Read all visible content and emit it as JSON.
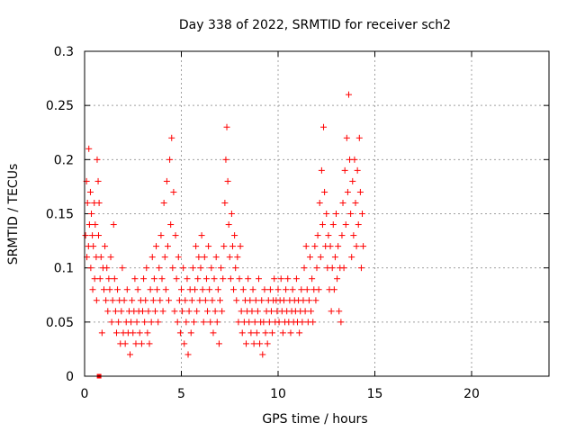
{
  "chart_data": {
    "type": "scatter",
    "title": "Day 338 of 2022, SRMTID for receiver sch2",
    "xlabel": "GPS time / hours",
    "ylabel": "SRMTID / TECUs",
    "xlim": [
      0,
      24
    ],
    "ylim": [
      0,
      0.3
    ],
    "x_ticks": [
      0,
      5,
      10,
      15,
      20
    ],
    "x_tick_labels": [
      "0",
      "5",
      "10",
      "15",
      "20"
    ],
    "y_ticks": [
      0,
      0.05,
      0.1,
      0.15,
      0.2,
      0.25,
      0.3
    ],
    "y_tick_labels": [
      "0",
      "0.05",
      "0.1",
      "0.15",
      "0.2",
      "0.25",
      "0.3"
    ],
    "grid": true,
    "marker": "plus",
    "series": [
      {
        "name": "SRMTID",
        "color": "#ff0000",
        "points": [
          [
            0.05,
            0.13
          ],
          [
            0.1,
            0.18
          ],
          [
            0.12,
            0.11
          ],
          [
            0.15,
            0.16
          ],
          [
            0.2,
            0.12
          ],
          [
            0.22,
            0.21
          ],
          [
            0.25,
            0.14
          ],
          [
            0.3,
            0.17
          ],
          [
            0.32,
            0.1
          ],
          [
            0.35,
            0.15
          ],
          [
            0.4,
            0.13
          ],
          [
            0.42,
            0.08
          ],
          [
            0.45,
            0.12
          ],
          [
            0.5,
            0.16
          ],
          [
            0.52,
            0.09
          ],
          [
            0.55,
            0.14
          ],
          [
            0.6,
            0.11
          ],
          [
            0.62,
            0.07
          ],
          [
            0.65,
            0.2
          ],
          [
            0.7,
            0.18
          ],
          [
            0.72,
            0.13
          ],
          [
            0.75,
            0.16
          ],
          [
            0.8,
            0.09
          ],
          [
            0.85,
            0.11
          ],
          [
            0.9,
            0.04
          ],
          [
            0.95,
            0.1
          ],
          [
            1.0,
            0.08
          ],
          [
            1.05,
            0.12
          ],
          [
            1.1,
            0.07
          ],
          [
            1.15,
            0.1
          ],
          [
            1.2,
            0.06
          ],
          [
            1.25,
            0.09
          ],
          [
            1.3,
            0.08
          ],
          [
            1.35,
            0.11
          ],
          [
            1.4,
            0.05
          ],
          [
            1.45,
            0.07
          ],
          [
            1.5,
            0.14
          ],
          [
            1.55,
            0.09
          ],
          [
            1.6,
            0.06
          ],
          [
            1.65,
            0.04
          ],
          [
            1.7,
            0.08
          ],
          [
            1.75,
            0.05
          ],
          [
            1.8,
            0.07
          ],
          [
            1.85,
            0.03
          ],
          [
            1.9,
            0.06
          ],
          [
            1.95,
            0.1
          ],
          [
            2.0,
            0.04
          ],
          [
            2.05,
            0.07
          ],
          [
            2.1,
            0.03
          ],
          [
            2.15,
            0.05
          ],
          [
            2.2,
            0.08
          ],
          [
            2.25,
            0.04
          ],
          [
            2.3,
            0.06
          ],
          [
            2.35,
            0.02
          ],
          [
            2.4,
            0.05
          ],
          [
            2.45,
            0.07
          ],
          [
            2.5,
            0.04
          ],
          [
            2.55,
            0.06
          ],
          [
            2.6,
            0.09
          ],
          [
            2.65,
            0.03
          ],
          [
            2.7,
            0.05
          ],
          [
            2.75,
            0.08
          ],
          [
            2.8,
            0.06
          ],
          [
            2.85,
            0.04
          ],
          [
            2.9,
            0.07
          ],
          [
            2.95,
            0.03
          ],
          [
            3.0,
            0.06
          ],
          [
            3.05,
            0.09
          ],
          [
            3.1,
            0.05
          ],
          [
            3.15,
            0.07
          ],
          [
            3.2,
            0.1
          ],
          [
            3.25,
            0.04
          ],
          [
            3.3,
            0.06
          ],
          [
            3.35,
            0.03
          ],
          [
            3.4,
            0.08
          ],
          [
            3.45,
            0.05
          ],
          [
            3.5,
            0.11
          ],
          [
            3.55,
            0.07
          ],
          [
            3.6,
            0.09
          ],
          [
            3.65,
            0.06
          ],
          [
            3.7,
            0.12
          ],
          [
            3.75,
            0.08
          ],
          [
            3.8,
            0.05
          ],
          [
            3.85,
            0.1
          ],
          [
            3.9,
            0.07
          ],
          [
            3.95,
            0.13
          ],
          [
            4.0,
            0.09
          ],
          [
            4.05,
            0.06
          ],
          [
            4.1,
            0.16
          ],
          [
            4.15,
            0.11
          ],
          [
            4.2,
            0.08
          ],
          [
            4.25,
            0.18
          ],
          [
            4.3,
            0.12
          ],
          [
            4.35,
            0.07
          ],
          [
            4.4,
            0.2
          ],
          [
            4.45,
            0.14
          ],
          [
            4.5,
            0.22
          ],
          [
            4.55,
            0.1
          ],
          [
            4.6,
            0.17
          ],
          [
            4.65,
            0.06
          ],
          [
            4.7,
            0.13
          ],
          [
            4.75,
            0.09
          ],
          [
            4.8,
            0.05
          ],
          [
            4.85,
            0.11
          ],
          [
            4.9,
            0.07
          ],
          [
            4.95,
            0.04
          ],
          [
            5.0,
            0.08
          ],
          [
            5.05,
            0.06
          ],
          [
            5.1,
            0.1
          ],
          [
            5.15,
            0.03
          ],
          [
            5.2,
            0.07
          ],
          [
            5.25,
            0.05
          ],
          [
            5.3,
            0.09
          ],
          [
            5.35,
            0.02
          ],
          [
            5.4,
            0.06
          ],
          [
            5.45,
            0.08
          ],
          [
            5.5,
            0.04
          ],
          [
            5.55,
            0.07
          ],
          [
            5.6,
            0.1
          ],
          [
            5.65,
            0.05
          ],
          [
            5.7,
            0.08
          ],
          [
            5.75,
            0.12
          ],
          [
            5.8,
            0.06
          ],
          [
            5.85,
            0.09
          ],
          [
            5.9,
            0.11
          ],
          [
            5.95,
            0.07
          ],
          [
            6.0,
            0.1
          ],
          [
            6.05,
            0.13
          ],
          [
            6.1,
            0.08
          ],
          [
            6.15,
            0.05
          ],
          [
            6.2,
            0.11
          ],
          [
            6.25,
            0.07
          ],
          [
            6.3,
            0.09
          ],
          [
            6.35,
            0.06
          ],
          [
            6.4,
            0.12
          ],
          [
            6.45,
            0.08
          ],
          [
            6.5,
            0.05
          ],
          [
            6.55,
            0.1
          ],
          [
            6.6,
            0.07
          ],
          [
            6.65,
            0.04
          ],
          [
            6.7,
            0.09
          ],
          [
            6.75,
            0.06
          ],
          [
            6.8,
            0.11
          ],
          [
            6.85,
            0.05
          ],
          [
            6.9,
            0.08
          ],
          [
            6.95,
            0.03
          ],
          [
            7.0,
            0.07
          ],
          [
            7.05,
            0.1
          ],
          [
            7.1,
            0.06
          ],
          [
            7.15,
            0.09
          ],
          [
            7.2,
            0.12
          ],
          [
            7.25,
            0.16
          ],
          [
            7.3,
            0.2
          ],
          [
            7.35,
            0.23
          ],
          [
            7.4,
            0.18
          ],
          [
            7.45,
            0.14
          ],
          [
            7.5,
            0.11
          ],
          [
            7.55,
            0.09
          ],
          [
            7.6,
            0.15
          ],
          [
            7.65,
            0.12
          ],
          [
            7.7,
            0.08
          ],
          [
            7.75,
            0.13
          ],
          [
            7.8,
            0.1
          ],
          [
            7.85,
            0.07
          ],
          [
            7.9,
            0.11
          ],
          [
            7.95,
            0.05
          ],
          [
            8.0,
            0.09
          ],
          [
            8.05,
            0.12
          ],
          [
            8.1,
            0.06
          ],
          [
            8.15,
            0.04
          ],
          [
            8.2,
            0.08
          ],
          [
            8.25,
            0.05
          ],
          [
            8.3,
            0.07
          ],
          [
            8.35,
            0.03
          ],
          [
            8.4,
            0.06
          ],
          [
            8.45,
            0.09
          ],
          [
            8.5,
            0.05
          ],
          [
            8.55,
            0.07
          ],
          [
            8.6,
            0.04
          ],
          [
            8.65,
            0.06
          ],
          [
            8.7,
            0.08
          ],
          [
            8.75,
            0.03
          ],
          [
            8.8,
            0.05
          ],
          [
            8.85,
            0.07
          ],
          [
            8.9,
            0.04
          ],
          [
            8.95,
            0.06
          ],
          [
            9.0,
            0.09
          ],
          [
            9.05,
            0.03
          ],
          [
            9.1,
            0.05
          ],
          [
            9.15,
            0.07
          ],
          [
            9.2,
            0.02
          ],
          [
            9.25,
            0.05
          ],
          [
            9.3,
            0.08
          ],
          [
            9.35,
            0.04
          ],
          [
            9.4,
            0.06
          ],
          [
            9.45,
            0.03
          ],
          [
            9.5,
            0.07
          ],
          [
            9.55,
            0.05
          ],
          [
            9.6,
            0.08
          ],
          [
            9.65,
            0.06
          ],
          [
            9.7,
            0.04
          ],
          [
            9.75,
            0.07
          ],
          [
            9.8,
            0.09
          ],
          [
            9.85,
            0.05
          ],
          [
            9.9,
            0.07
          ],
          [
            9.95,
            0.06
          ],
          [
            10.0,
            0.08
          ],
          [
            10.05,
            0.05
          ],
          [
            10.1,
            0.07
          ],
          [
            10.15,
            0.09
          ],
          [
            10.2,
            0.06
          ],
          [
            10.25,
            0.04
          ],
          [
            10.3,
            0.07
          ],
          [
            10.35,
            0.05
          ],
          [
            10.4,
            0.08
          ],
          [
            10.45,
            0.06
          ],
          [
            10.5,
            0.09
          ],
          [
            10.55,
            0.05
          ],
          [
            10.6,
            0.07
          ],
          [
            10.65,
            0.04
          ],
          [
            10.7,
            0.06
          ],
          [
            10.75,
            0.08
          ],
          [
            10.8,
            0.05
          ],
          [
            10.85,
            0.07
          ],
          [
            10.9,
            0.06
          ],
          [
            10.95,
            0.09
          ],
          [
            11.0,
            0.05
          ],
          [
            11.05,
            0.07
          ],
          [
            11.1,
            0.04
          ],
          [
            11.15,
            0.06
          ],
          [
            11.2,
            0.08
          ],
          [
            11.25,
            0.05
          ],
          [
            11.3,
            0.07
          ],
          [
            11.35,
            0.1
          ],
          [
            11.4,
            0.06
          ],
          [
            11.45,
            0.12
          ],
          [
            11.5,
            0.08
          ],
          [
            11.55,
            0.05
          ],
          [
            11.6,
            0.07
          ],
          [
            11.65,
            0.11
          ],
          [
            11.7,
            0.06
          ],
          [
            11.75,
            0.09
          ],
          [
            11.8,
            0.05
          ],
          [
            11.85,
            0.08
          ],
          [
            11.9,
            0.12
          ],
          [
            11.95,
            0.07
          ],
          [
            12.0,
            0.1
          ],
          [
            12.05,
            0.13
          ],
          [
            12.1,
            0.08
          ],
          [
            12.15,
            0.16
          ],
          [
            12.2,
            0.11
          ],
          [
            12.25,
            0.19
          ],
          [
            12.3,
            0.14
          ],
          [
            12.35,
            0.23
          ],
          [
            12.4,
            0.17
          ],
          [
            12.45,
            0.12
          ],
          [
            12.5,
            0.15
          ],
          [
            12.55,
            0.1
          ],
          [
            12.6,
            0.13
          ],
          [
            12.65,
            0.08
          ],
          [
            12.7,
            0.12
          ],
          [
            12.75,
            0.06
          ],
          [
            12.8,
            0.1
          ],
          [
            12.85,
            0.14
          ],
          [
            12.9,
            0.08
          ],
          [
            12.95,
            0.11
          ],
          [
            13.0,
            0.15
          ],
          [
            13.05,
            0.09
          ],
          [
            13.1,
            0.12
          ],
          [
            13.15,
            0.06
          ],
          [
            13.2,
            0.1
          ],
          [
            13.25,
            0.05
          ],
          [
            13.3,
            0.13
          ],
          [
            13.35,
            0.16
          ],
          [
            13.4,
            0.1
          ],
          [
            13.45,
            0.19
          ],
          [
            13.5,
            0.14
          ],
          [
            13.55,
            0.22
          ],
          [
            13.6,
            0.17
          ],
          [
            13.65,
            0.26
          ],
          [
            13.7,
            0.2
          ],
          [
            13.75,
            0.15
          ],
          [
            13.8,
            0.11
          ],
          [
            13.85,
            0.18
          ],
          [
            13.9,
            0.13
          ],
          [
            13.95,
            0.2
          ],
          [
            14.0,
            0.16
          ],
          [
            14.05,
            0.12
          ],
          [
            14.1,
            0.19
          ],
          [
            14.15,
            0.14
          ],
          [
            14.2,
            0.22
          ],
          [
            14.25,
            0.17
          ],
          [
            14.3,
            0.1
          ],
          [
            14.35,
            0.15
          ],
          [
            14.4,
            0.12
          ]
        ]
      }
    ],
    "annotation_marker": {
      "x": 0.75,
      "y": 0.0,
      "shape": "filled-square",
      "color": "#ff0000"
    }
  }
}
